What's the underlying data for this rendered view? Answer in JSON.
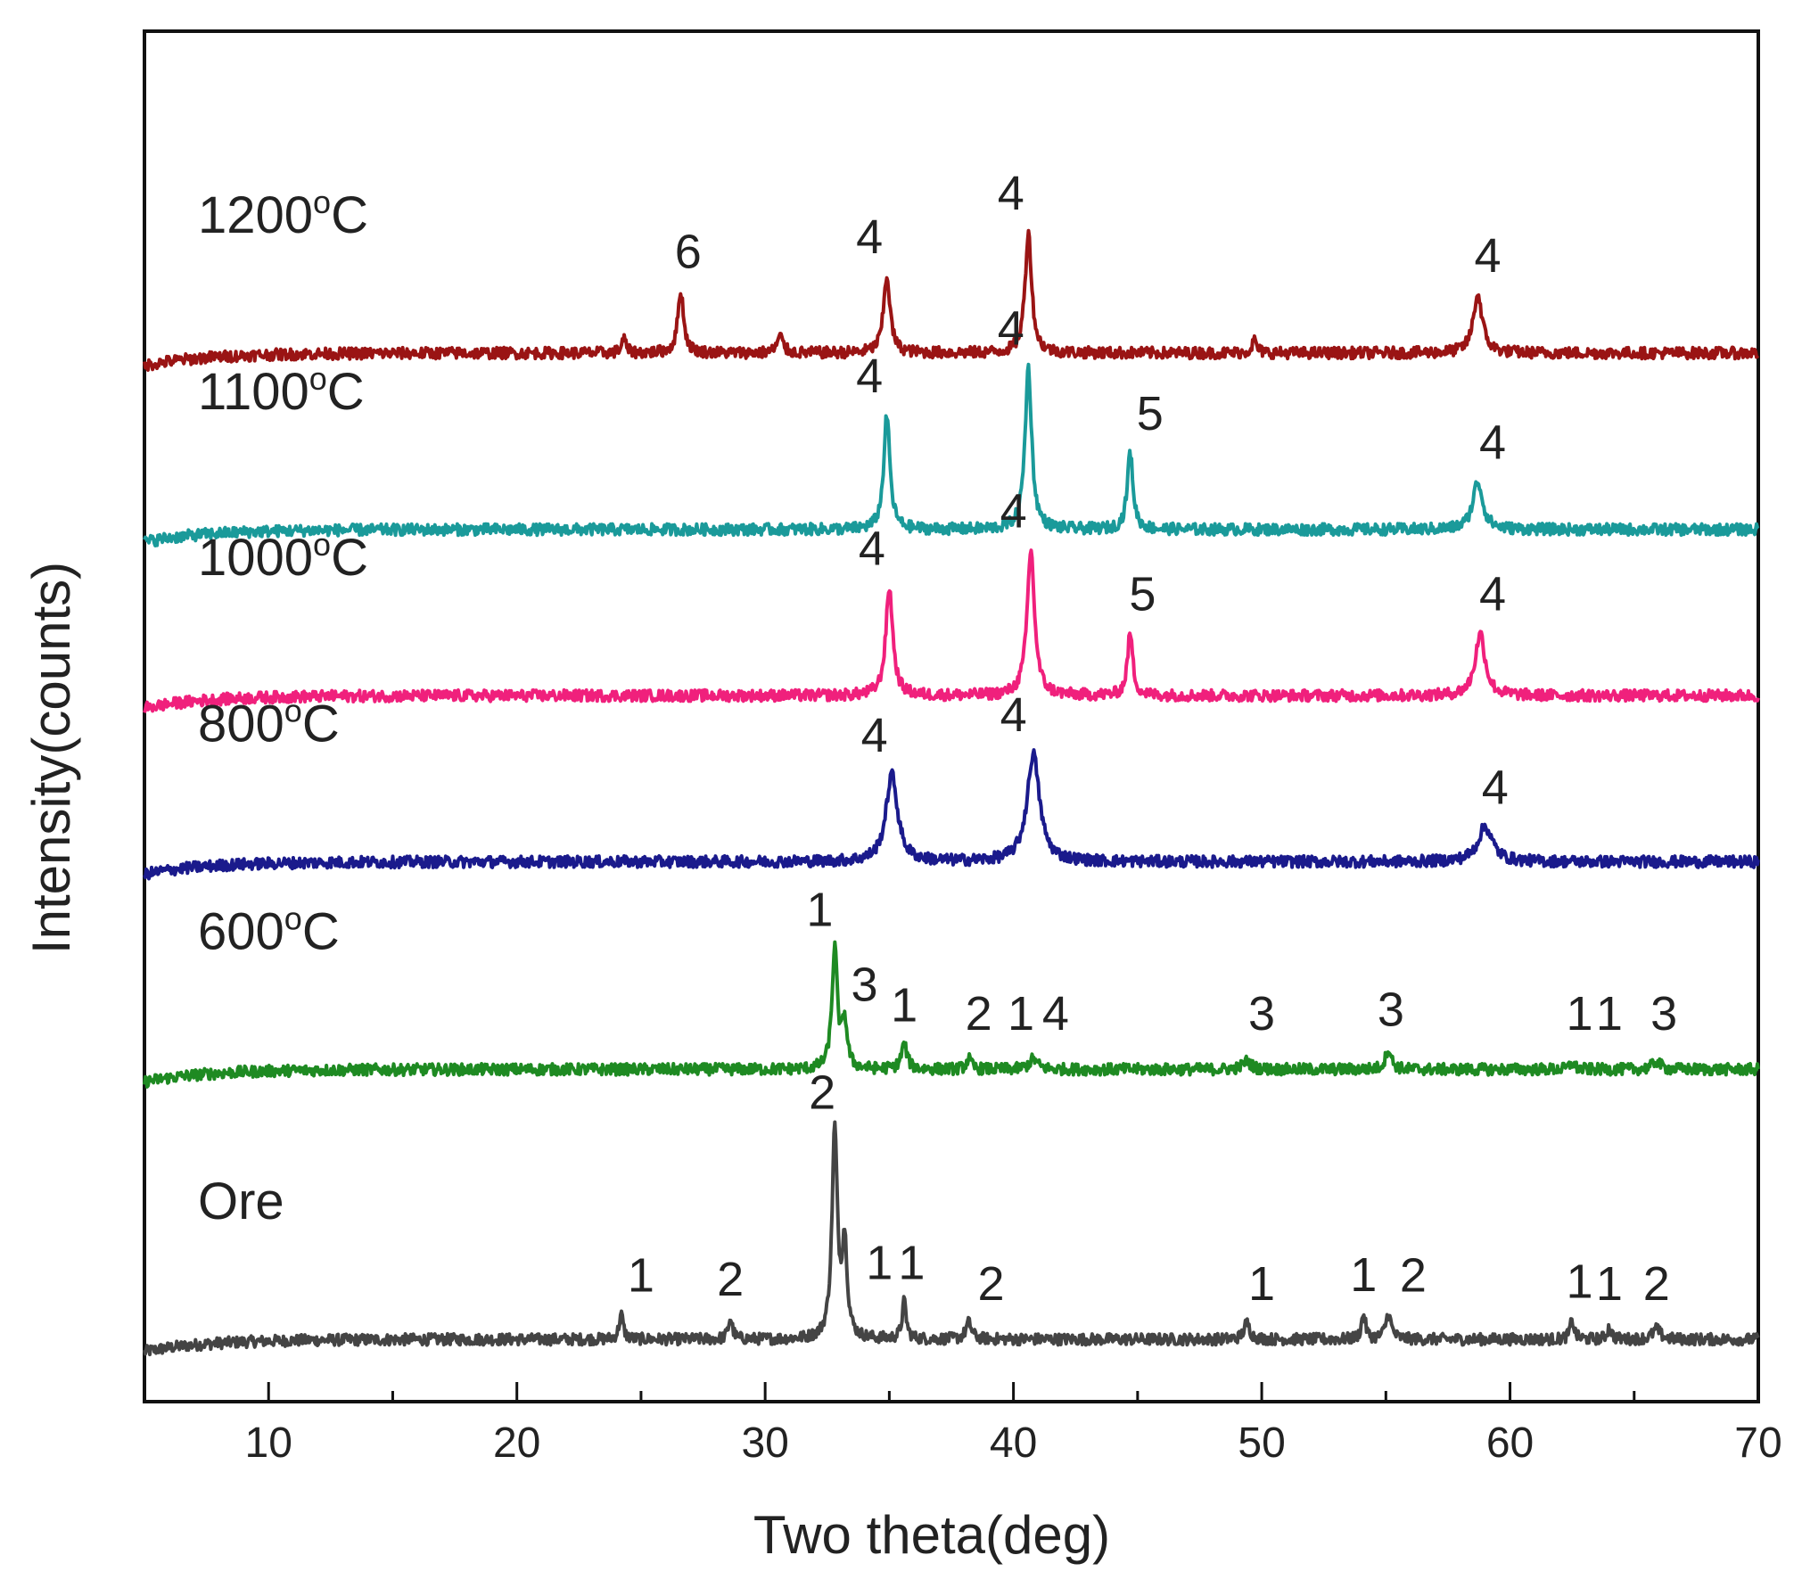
{
  "chart_data": {
    "type": "line",
    "title": "",
    "xlabel": "Two theta(deg)",
    "ylabel": "Intensity(counts)",
    "xlim": [
      5,
      70
    ],
    "ylim": [
      0,
      6.6
    ],
    "xticks": [
      10,
      20,
      30,
      40,
      50,
      60,
      70
    ],
    "xtick_labels": [
      "10",
      "20",
      "30",
      "40",
      "50",
      "60",
      "70"
    ],
    "yticks": [],
    "grid": false,
    "legend": "none",
    "series": [
      {
        "name": "Ore",
        "label_main": "Ore",
        "label_sup": "",
        "label_unit": "",
        "color": "#444444",
        "baseline": 0.3,
        "peaks": [
          {
            "x": 24.2,
            "h": 0.12,
            "w": 0.1
          },
          {
            "x": 28.6,
            "h": 0.1,
            "w": 0.1
          },
          {
            "x": 32.8,
            "h": 1.0,
            "w": 0.13
          },
          {
            "x": 33.2,
            "h": 0.45,
            "w": 0.12
          },
          {
            "x": 35.6,
            "h": 0.18,
            "w": 0.1
          },
          {
            "x": 38.2,
            "h": 0.08,
            "w": 0.14
          },
          {
            "x": 49.4,
            "h": 0.08,
            "w": 0.14
          },
          {
            "x": 54.1,
            "h": 0.12,
            "w": 0.1
          },
          {
            "x": 55.1,
            "h": 0.12,
            "w": 0.14
          },
          {
            "x": 62.5,
            "h": 0.09,
            "w": 0.1
          },
          {
            "x": 64.0,
            "h": 0.06,
            "w": 0.1
          },
          {
            "x": 65.9,
            "h": 0.05,
            "w": 0.18
          }
        ],
        "peak_labels": [
          {
            "x": 25.0,
            "text": "1"
          },
          {
            "x": 28.6,
            "text": "2"
          },
          {
            "x": 32.3,
            "text": "2"
          },
          {
            "x": 34.6,
            "text": "1"
          },
          {
            "x": 35.9,
            "text": "1"
          },
          {
            "x": 39.1,
            "text": "2"
          },
          {
            "x": 50.0,
            "text": "1"
          },
          {
            "x": 54.1,
            "text": "1"
          },
          {
            "x": 56.1,
            "text": "2"
          },
          {
            "x": 62.8,
            "text": "1"
          },
          {
            "x": 64.0,
            "text": "1"
          },
          {
            "x": 65.9,
            "text": "2"
          }
        ]
      },
      {
        "name": "600°C",
        "label_main": "600",
        "label_sup": "o",
        "label_unit": "C",
        "color": "#1e8a22",
        "baseline": 1.6,
        "peaks": [
          {
            "x": 32.8,
            "h": 0.58,
            "w": 0.13
          },
          {
            "x": 33.2,
            "h": 0.22,
            "w": 0.12
          },
          {
            "x": 35.6,
            "h": 0.12,
            "w": 0.14
          },
          {
            "x": 38.2,
            "h": 0.05,
            "w": 0.12
          },
          {
            "x": 40.8,
            "h": 0.05,
            "w": 0.2
          },
          {
            "x": 49.4,
            "h": 0.04,
            "w": 0.2
          },
          {
            "x": 55.1,
            "h": 0.1,
            "w": 0.14
          },
          {
            "x": 62.5,
            "h": 0.03,
            "w": 0.12
          },
          {
            "x": 65.9,
            "h": 0.04,
            "w": 0.18
          }
        ],
        "peak_labels": [
          {
            "x": 32.2,
            "text": "1"
          },
          {
            "x": 34.0,
            "text": "3"
          },
          {
            "x": 35.6,
            "text": "1"
          },
          {
            "x": 38.6,
            "text": "2"
          },
          {
            "x": 40.3,
            "text": "1"
          },
          {
            "x": 41.7,
            "text": "4"
          },
          {
            "x": 50.0,
            "text": "3"
          },
          {
            "x": 55.2,
            "text": "3"
          },
          {
            "x": 62.8,
            "text": "1"
          },
          {
            "x": 64.0,
            "text": "1"
          },
          {
            "x": 66.2,
            "text": "3"
          }
        ]
      },
      {
        "name": "800°C",
        "label_main": "800",
        "label_sup": "o",
        "label_unit": "C",
        "color": "#1a1a8c",
        "baseline": 2.6,
        "peaks": [
          {
            "x": 35.1,
            "h": 0.42,
            "w": 0.28
          },
          {
            "x": 40.8,
            "h": 0.52,
            "w": 0.3
          },
          {
            "x": 59.0,
            "h": 0.17,
            "w": 0.35
          }
        ],
        "peak_labels": [
          {
            "x": 34.4,
            "text": "4"
          },
          {
            "x": 40.0,
            "text": "4"
          },
          {
            "x": 59.4,
            "text": "4"
          }
        ]
      },
      {
        "name": "1000°C",
        "label_main": "1000",
        "label_sup": "o",
        "label_unit": "C",
        "color": "#f0207c",
        "baseline": 3.4,
        "peaks": [
          {
            "x": 35.0,
            "h": 0.52,
            "w": 0.17
          },
          {
            "x": 40.7,
            "h": 0.7,
            "w": 0.18
          },
          {
            "x": 44.7,
            "h": 0.3,
            "w": 0.13
          },
          {
            "x": 58.8,
            "h": 0.3,
            "w": 0.24
          }
        ],
        "peak_labels": [
          {
            "x": 34.3,
            "text": "4"
          },
          {
            "x": 40.0,
            "text": "4"
          },
          {
            "x": 45.2,
            "text": "5"
          },
          {
            "x": 59.3,
            "text": "4"
          }
        ]
      },
      {
        "name": "1100°C",
        "label_main": "1100",
        "label_sup": "o",
        "label_unit": "C",
        "color": "#1a9a9a",
        "baseline": 4.2,
        "peaks": [
          {
            "x": 34.9,
            "h": 0.55,
            "w": 0.15
          },
          {
            "x": 40.6,
            "h": 0.78,
            "w": 0.16
          },
          {
            "x": 44.7,
            "h": 0.37,
            "w": 0.14
          },
          {
            "x": 58.7,
            "h": 0.23,
            "w": 0.24
          }
        ],
        "peak_labels": [
          {
            "x": 34.2,
            "text": "4"
          },
          {
            "x": 39.9,
            "text": "4"
          },
          {
            "x": 45.5,
            "text": "5"
          },
          {
            "x": 59.3,
            "text": "4"
          }
        ]
      },
      {
        "name": "1200°C",
        "label_main": "1200",
        "label_sup": "o",
        "label_unit": "C",
        "color": "#9a1414",
        "baseline": 5.05,
        "peaks": [
          {
            "x": 24.3,
            "h": 0.07,
            "w": 0.1
          },
          {
            "x": 26.6,
            "h": 0.3,
            "w": 0.14
          },
          {
            "x": 30.6,
            "h": 0.08,
            "w": 0.14
          },
          {
            "x": 34.9,
            "h": 0.37,
            "w": 0.16
          },
          {
            "x": 40.6,
            "h": 0.58,
            "w": 0.16
          },
          {
            "x": 49.7,
            "h": 0.06,
            "w": 0.12
          },
          {
            "x": 58.7,
            "h": 0.28,
            "w": 0.22
          }
        ],
        "peak_labels": [
          {
            "x": 26.9,
            "text": "6"
          },
          {
            "x": 34.2,
            "text": "4"
          },
          {
            "x": 39.9,
            "text": "4"
          },
          {
            "x": 59.1,
            "text": "4"
          }
        ]
      }
    ]
  }
}
